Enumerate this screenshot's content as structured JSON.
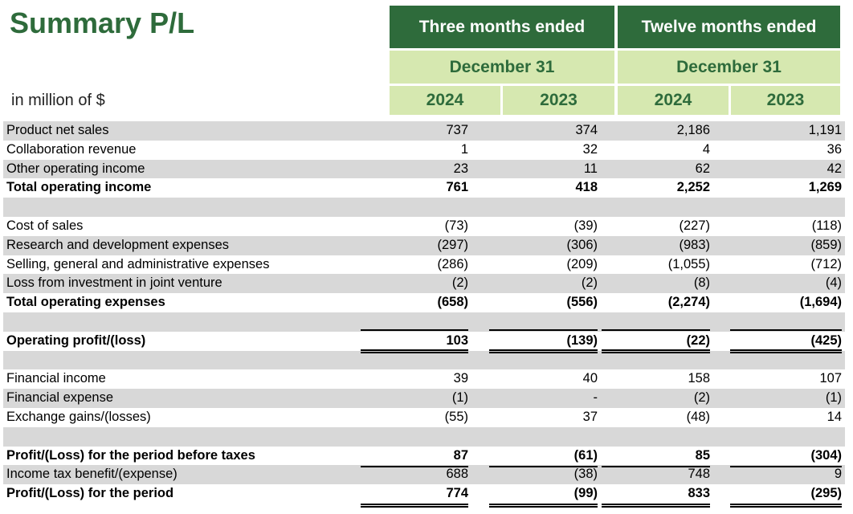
{
  "title": "Summary P/L",
  "units": "in million of $",
  "header": {
    "group1": "Three months ended",
    "group2": "Twelve months ended",
    "date1": "December 31",
    "date2": "December 31",
    "years": [
      "2024",
      "2023",
      "2024",
      "2023"
    ]
  },
  "rows": [
    {
      "label": "Product net sales",
      "values": [
        "737",
        "374",
        "2,186",
        "1,191"
      ]
    },
    {
      "label": "Collaboration revenue",
      "values": [
        "1",
        "32",
        "4",
        "36"
      ]
    },
    {
      "label": "Other operating income",
      "values": [
        "23",
        "11",
        "62",
        "42"
      ]
    },
    {
      "label": "Total operating income",
      "values": [
        "761",
        "418",
        "2,252",
        "1,269"
      ]
    },
    {
      "label": "",
      "values": [
        "",
        "",
        "",
        ""
      ]
    },
    {
      "label": "Cost of sales",
      "values": [
        "(73)",
        "(39)",
        "(227)",
        "(118)"
      ]
    },
    {
      "label": "Research and development expenses",
      "values": [
        "(297)",
        "(306)",
        "(983)",
        "(859)"
      ]
    },
    {
      "label": "Selling, general and administrative expenses",
      "values": [
        "(286)",
        "(209)",
        "(1,055)",
        "(712)"
      ]
    },
    {
      "label": "Loss from investment in joint venture",
      "values": [
        "(2)",
        "(2)",
        "(8)",
        "(4)"
      ]
    },
    {
      "label": "Total operating expenses",
      "values": [
        "(658)",
        "(556)",
        "(2,274)",
        "(1,694)"
      ]
    },
    {
      "label": "",
      "values": [
        "",
        "",
        "",
        ""
      ]
    },
    {
      "label": "Operating profit/(loss)",
      "values": [
        "103",
        "(139)",
        "(22)",
        "(425)"
      ]
    },
    {
      "label": "",
      "values": [
        "",
        "",
        "",
        ""
      ]
    },
    {
      "label": "Financial income",
      "values": [
        "39",
        "40",
        "158",
        "107"
      ]
    },
    {
      "label": "Financial expense",
      "values": [
        "(1)",
        "-",
        "(2)",
        "(1)"
      ]
    },
    {
      "label": "Exchange gains/(losses)",
      "values": [
        "(55)",
        "37",
        "(48)",
        "14"
      ]
    },
    {
      "label": "",
      "values": [
        "",
        "",
        "",
        ""
      ]
    },
    {
      "label": "Profit/(Loss) for the period before taxes",
      "values": [
        "87",
        "(61)",
        "85",
        "(304)"
      ]
    },
    {
      "label": "Income tax benefit/(expense)",
      "values": [
        "688",
        "(38)",
        "748",
        "9"
      ]
    },
    {
      "label": "Profit/(Loss) for the period",
      "values": [
        "774",
        "(99)",
        "833",
        "(295)"
      ]
    }
  ]
}
